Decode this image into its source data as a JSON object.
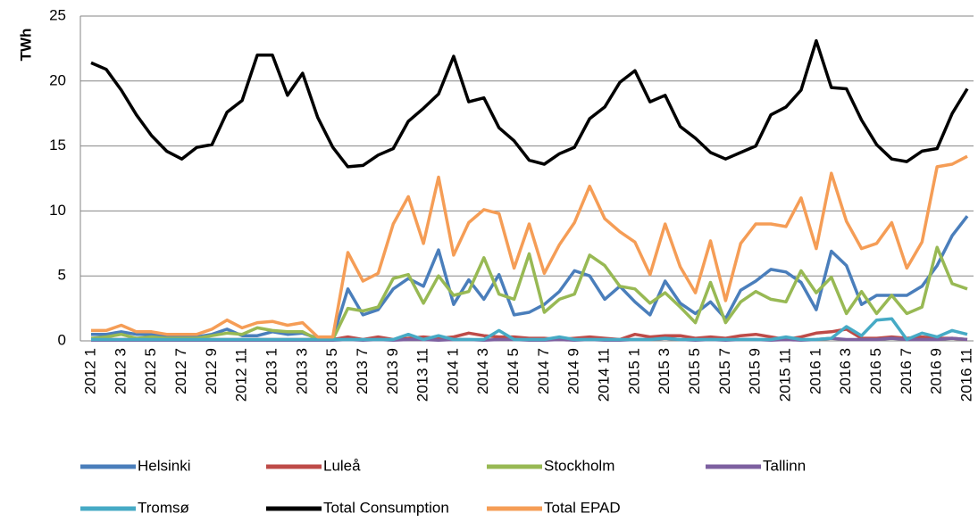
{
  "chart_data": {
    "type": "line",
    "ylabel": "TWh",
    "categories": [
      "2012 1",
      null,
      "2012 3",
      null,
      "2012 5",
      null,
      "2012 7",
      null,
      "2012 9",
      null,
      "2012 11",
      null,
      "2013 1",
      null,
      "2013 3",
      null,
      "2013 5",
      null,
      "2013 7",
      null,
      "2013 9",
      null,
      "2013 11",
      null,
      "2014 1",
      null,
      "2014 3",
      null,
      "2014 5",
      null,
      "2014 7",
      null,
      "2014 9",
      null,
      "2014 11",
      null,
      "2015 1",
      null,
      "2015 3",
      null,
      "2015 5",
      null,
      "2015 7",
      null,
      "2015 9",
      null,
      "2015 11",
      null,
      "2016 1",
      null,
      "2016 3",
      null,
      "2016 5",
      null,
      "2016 7",
      null,
      "2016 9",
      null,
      "2016 11"
    ],
    "series": [
      {
        "name": "Helsinki",
        "color": "#4a7ebb",
        "values": [
          0.5,
          0.5,
          0.7,
          0.5,
          0.5,
          0.3,
          0.3,
          0.3,
          0.5,
          0.9,
          0.4,
          0.4,
          0.7,
          0.5,
          0.6,
          0.2,
          0.2,
          4.0,
          2.0,
          2.4,
          4.0,
          4.8,
          4.2,
          7.0,
          2.8,
          4.7,
          3.2,
          5.1,
          2.0,
          2.2,
          2.8,
          3.8,
          5.4,
          5.0,
          3.2,
          4.2,
          3.0,
          2.0,
          4.6,
          2.9,
          2.1,
          3.0,
          1.7,
          3.9,
          4.6,
          5.5,
          5.3,
          4.5,
          2.4,
          6.9,
          5.8,
          2.8,
          3.5,
          3.5,
          3.5,
          4.2,
          5.8,
          8.1,
          9.6
        ]
      },
      {
        "name": "Luleå",
        "color": "#be4b48",
        "values": [
          0.1,
          0.1,
          0.1,
          0.1,
          0.1,
          0.1,
          0.1,
          0.1,
          0.1,
          0.1,
          0.1,
          0.1,
          0.1,
          0.1,
          0.1,
          0.1,
          0.1,
          0.3,
          0.1,
          0.3,
          0.1,
          0.2,
          0.3,
          0.2,
          0.3,
          0.6,
          0.4,
          0.3,
          0.3,
          0.2,
          0.2,
          0.1,
          0.2,
          0.3,
          0.2,
          0.1,
          0.5,
          0.3,
          0.4,
          0.4,
          0.2,
          0.3,
          0.2,
          0.4,
          0.5,
          0.3,
          0.1,
          0.3,
          0.6,
          0.7,
          0.9,
          0.2,
          0.2,
          0.3,
          0.2,
          0.3,
          0.2,
          0.2,
          0.1
        ]
      },
      {
        "name": "Stockholm",
        "color": "#98b954",
        "values": [
          0.2,
          0.3,
          0.5,
          0.2,
          0.3,
          0.2,
          0.2,
          0.2,
          0.4,
          0.6,
          0.5,
          1.0,
          0.8,
          0.7,
          0.7,
          0.1,
          0.1,
          2.5,
          2.3,
          2.6,
          4.8,
          5.1,
          2.9,
          5.0,
          3.5,
          3.8,
          6.4,
          3.6,
          3.2,
          6.7,
          2.2,
          3.2,
          3.6,
          6.6,
          5.8,
          4.2,
          4.0,
          2.9,
          3.7,
          2.6,
          1.4,
          4.5,
          1.4,
          3.0,
          3.8,
          3.2,
          3.0,
          5.4,
          3.7,
          4.9,
          2.1,
          3.8,
          2.1,
          3.5,
          2.1,
          2.6,
          7.2,
          4.4,
          4.0
        ]
      },
      {
        "name": "Tallinn",
        "color": "#7d60a0",
        "values": [
          0.05,
          0.05,
          0.05,
          0.05,
          0.05,
          0.05,
          0.05,
          0.05,
          0.05,
          0.05,
          0.05,
          0.05,
          0.05,
          0.05,
          0.05,
          0.05,
          0.05,
          0.1,
          0.05,
          0.1,
          0.05,
          0.1,
          0.1,
          0.05,
          0.1,
          0.1,
          0.05,
          0.1,
          0.1,
          0.05,
          0.05,
          0.1,
          0.05,
          0.1,
          0.05,
          0.05,
          0.1,
          0.1,
          0.2,
          0.1,
          0.05,
          0.1,
          0.05,
          0.1,
          0.1,
          0.05,
          0.1,
          0.05,
          0.1,
          0.2,
          0.1,
          0.1,
          0.1,
          0.2,
          0.1,
          0.1,
          0.1,
          0.2,
          0.1
        ]
      },
      {
        "name": "Tromsø",
        "color": "#46aac5",
        "values": [
          0.1,
          0.1,
          0.1,
          0.1,
          0.1,
          0.1,
          0.1,
          0.1,
          0.1,
          0.1,
          0.1,
          0.1,
          0.1,
          0.1,
          0.1,
          0.1,
          0.1,
          0.1,
          0.1,
          0.1,
          0.1,
          0.5,
          0.1,
          0.4,
          0.1,
          0.1,
          0.1,
          0.8,
          0.1,
          0.1,
          0.1,
          0.3,
          0.1,
          0.1,
          0.1,
          0.1,
          0.1,
          0.1,
          0.2,
          0.1,
          0.1,
          0.1,
          0.1,
          0.1,
          0.1,
          0.1,
          0.3,
          0.1,
          0.1,
          0.2,
          1.1,
          0.4,
          1.6,
          1.7,
          0.1,
          0.6,
          0.3,
          0.8,
          0.5
        ]
      },
      {
        "name": "Total Consumption",
        "color": "#000000",
        "values": [
          21.4,
          20.9,
          19.3,
          17.4,
          15.8,
          14.6,
          14.0,
          14.9,
          15.1,
          17.6,
          18.5,
          22.0,
          22.0,
          18.9,
          20.6,
          17.2,
          14.9,
          13.4,
          13.5,
          14.3,
          14.8,
          16.9,
          17.9,
          19.0,
          21.9,
          18.4,
          18.7,
          16.4,
          15.4,
          13.9,
          13.6,
          14.4,
          14.9,
          17.1,
          18.0,
          19.9,
          20.8,
          18.4,
          18.9,
          16.5,
          15.6,
          14.5,
          14.0,
          14.5,
          15.0,
          17.4,
          18.0,
          19.3,
          23.1,
          19.5,
          19.4,
          17.0,
          15.1,
          14.0,
          13.8,
          14.6,
          14.8,
          17.5,
          19.4
        ]
      },
      {
        "name": "Total EPAD",
        "color": "#f59d56",
        "values": [
          0.8,
          0.8,
          1.2,
          0.7,
          0.7,
          0.5,
          0.5,
          0.5,
          0.9,
          1.6,
          1.0,
          1.4,
          1.5,
          1.2,
          1.4,
          0.3,
          0.3,
          6.8,
          4.6,
          5.2,
          9.0,
          11.1,
          7.5,
          12.6,
          6.6,
          9.1,
          10.1,
          9.8,
          5.6,
          9.0,
          5.2,
          7.4,
          9.1,
          11.9,
          9.4,
          8.4,
          7.6,
          5.1,
          9.0,
          5.7,
          3.7,
          7.7,
          3.1,
          7.5,
          9.0,
          9.0,
          8.8,
          11.0,
          7.1,
          12.9,
          9.2,
          7.1,
          7.5,
          9.1,
          5.6,
          7.6,
          13.4,
          13.6,
          14.2
        ]
      }
    ],
    "ylim": [
      0,
      25
    ],
    "yticks": [
      0,
      5,
      10,
      15,
      20,
      25
    ],
    "grid": true
  }
}
